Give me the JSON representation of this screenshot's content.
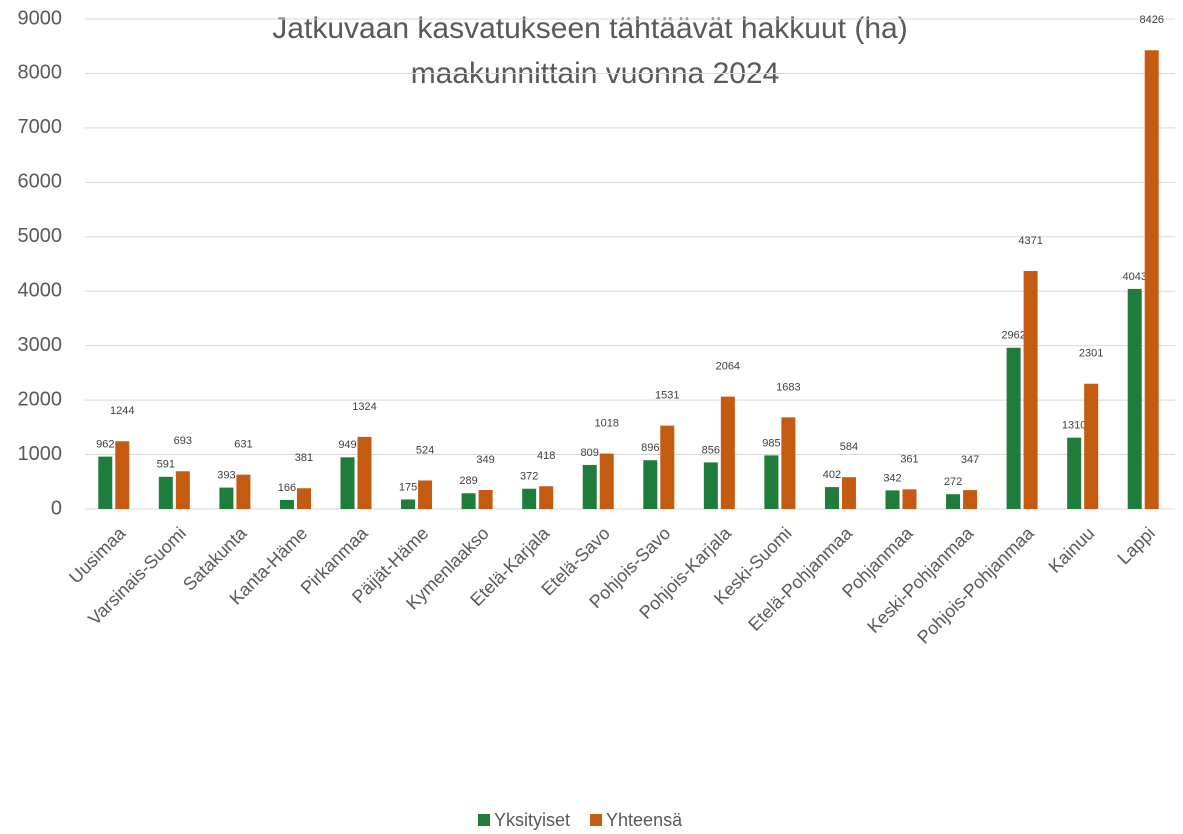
{
  "chart_data": {
    "type": "bar",
    "title": [
      "Jatkuvaan kasvatukseen tähtäävät hakkuut (ha)",
      "maakunnittain vuonna 2024"
    ],
    "categories": [
      "Uusimaa",
      "Varsinais-Suomi",
      "Satakunta",
      "Kanta-Häme",
      "Pirkanmaa",
      "Päijät-Häme",
      "Kymenlaakso",
      "Etelä-Karjala",
      "Etelä-Savo",
      "Pohjois-Savo",
      "Pohjois-Karjala",
      "Keski-Suomi",
      "Etelä-Pohjanmaa",
      "Pohjanmaa",
      "Keski-Pohjanmaa",
      "Pohjois-Pohjanmaa",
      "Kainuu",
      "Lappi"
    ],
    "series": [
      {
        "name": "Yksityiset",
        "color": "#1e7d3a",
        "values": [
          962,
          591,
          393,
          166,
          949,
          175,
          289,
          372,
          809,
          896,
          856,
          985,
          402,
          342,
          272,
          2962,
          1310,
          4043
        ]
      },
      {
        "name": "Yhteensä",
        "color": "#c55a11",
        "values": [
          1244,
          693,
          631,
          381,
          1324,
          524,
          349,
          418,
          1018,
          1531,
          2064,
          1683,
          584,
          361,
          347,
          4371,
          2301,
          8426
        ]
      }
    ],
    "ylim": [
      0,
      9000
    ],
    "yticks": [
      0,
      1000,
      2000,
      3000,
      4000,
      5000,
      6000,
      7000,
      8000,
      9000
    ],
    "grid": true,
    "legend": "bottom"
  }
}
